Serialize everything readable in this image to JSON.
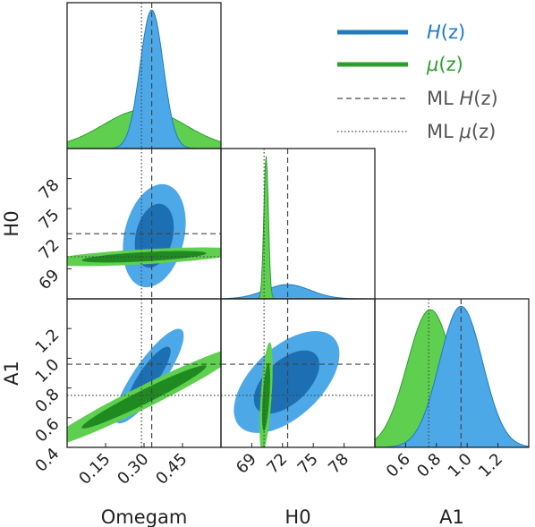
{
  "chart_data": {
    "type": "corner",
    "colors": {
      "H": "#1f7bc4",
      "H_light": "#4da8e8",
      "H_dark": "#1d6fb4",
      "mu": "#2e9e2e",
      "mu_light": "#5fcf4f",
      "mu_dark": "#1f8a1f",
      "ml_line": "#444444",
      "frame": "#222222"
    },
    "parameters": [
      {
        "name": "Omegam",
        "label": "Omegam",
        "range": [
          0.0,
          0.6
        ],
        "ticks": [
          "0.15",
          "0.30",
          "0.45"
        ],
        "tick_values": [
          0.15,
          0.3,
          0.45
        ]
      },
      {
        "name": "H0",
        "label": "H0",
        "range": [
          66.0,
          81.0
        ],
        "ticks": [
          "69",
          "72",
          "75",
          "78"
        ],
        "tick_values": [
          69,
          72,
          75,
          78
        ]
      },
      {
        "name": "A1",
        "label": "A1",
        "range": [
          0.4,
          1.4
        ],
        "ticks": [
          "0.4",
          "0.6",
          "0.8",
          "1.0",
          "1.2"
        ],
        "tick_values": [
          0.4,
          0.6,
          0.8,
          1.0,
          1.2
        ]
      }
    ],
    "bottom_axis_ticks": {
      "Omegam": [
        "0.15",
        "0.30",
        "0.45"
      ],
      "H0": [
        "69",
        "72",
        "75",
        "78"
      ],
      "A1": [
        "0.6",
        "0.8",
        "1.0",
        "1.2"
      ]
    },
    "series": [
      {
        "name": "H(z)",
        "key": "H",
        "ml": {
          "Omegam": 0.33,
          "H0": 72.5,
          "A1": 0.96
        },
        "marginals": {
          "Omegam": {
            "mean": 0.33,
            "sigma": 0.045
          },
          "H0": {
            "mean": 72.5,
            "sigma": 2.2
          },
          "A1": {
            "mean": 0.96,
            "sigma": 0.14
          }
        },
        "contours": [
          {
            "x": "Omegam",
            "y": "H0",
            "cx": 0.34,
            "cy": 72.3,
            "sx": 0.05,
            "sy": 2.1,
            "rho": 0.25
          },
          {
            "x": "Omegam",
            "y": "A1",
            "cx": 0.32,
            "cy": 0.88,
            "sx": 0.055,
            "sy": 0.13,
            "rho": 0.85
          },
          {
            "x": "H0",
            "y": "A1",
            "cx": 72.4,
            "cy": 0.84,
            "sx": 2.1,
            "sy": 0.14,
            "rho": 0.55
          }
        ]
      },
      {
        "name": "μ(z)",
        "key": "mu",
        "ml": {
          "Omegam": 0.29,
          "H0": 70.2,
          "A1": 0.75
        },
        "marginals": {
          "Omegam": {
            "mean": 0.3,
            "sigma": 0.16
          },
          "H0": {
            "mean": 70.4,
            "sigma": 0.22
          },
          "A1": {
            "mean": 0.76,
            "sigma": 0.15
          }
        },
        "contours": [
          {
            "x": "Omegam",
            "y": "H0",
            "cx": 0.3,
            "cy": 70.2,
            "sx": 0.16,
            "sy": 0.38,
            "rho": 0.6
          },
          {
            "x": "Omegam",
            "y": "A1",
            "cx": 0.3,
            "cy": 0.74,
            "sx": 0.16,
            "sy": 0.14,
            "rho": 0.97
          },
          {
            "x": "H0",
            "y": "A1",
            "cx": 70.4,
            "cy": 0.74,
            "sx": 0.26,
            "sy": 0.15,
            "rho": 0.55
          }
        ]
      }
    ],
    "legend": {
      "position": "top-right",
      "entries": [
        {
          "label_pre": "",
          "label_italic": "H",
          "label_post": "(z)",
          "style": "thick",
          "color_key": "H"
        },
        {
          "label_pre": "",
          "label_italic": "μ",
          "label_post": "(z)",
          "style": "thick",
          "color_key": "mu"
        },
        {
          "label_pre": "ML ",
          "label_italic": "H",
          "label_post": "(z)",
          "style": "dashed",
          "color_key": "ml_line"
        },
        {
          "label_pre": "ML ",
          "label_italic": "μ",
          "label_post": "(z)",
          "style": "dotted",
          "color_key": "ml_line"
        }
      ]
    }
  }
}
